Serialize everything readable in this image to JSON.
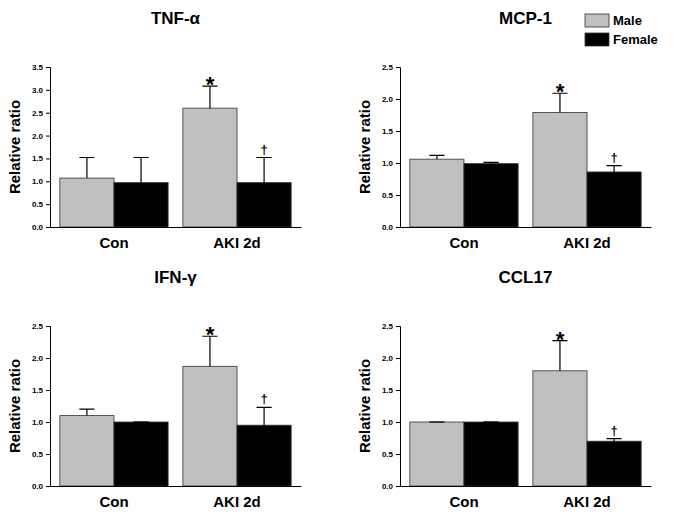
{
  "chart_data": [
    {
      "type": "bar",
      "title": "TNF-α",
      "y_label": "Relative ratio",
      "categories": [
        "Con",
        "AKI 2d"
      ],
      "ylim": [
        0,
        3.5
      ],
      "yticks": [
        {
          "value": 0,
          "label": "0.0"
        },
        0.5,
        {
          "value": 1,
          "label": "1.0"
        },
        1.5,
        {
          "value": 2,
          "label": "2.0"
        },
        2.5,
        {
          "value": 3,
          "label": "3.0"
        },
        3.5
      ],
      "series": [
        {
          "color": "#c0c0c0",
          "values": [
            1.07,
            2.6
          ],
          "errors": [
            0.45,
            0.48
          ],
          "annotations": [
            null,
            "*"
          ]
        },
        {
          "color": "#000000",
          "values": [
            0.97,
            0.97
          ],
          "errors": [
            0.55,
            0.55
          ],
          "annotations": [
            null,
            "†"
          ]
        }
      ]
    },
    {
      "type": "bar",
      "title": "MCP-1",
      "y_label": "Relative ratio",
      "categories": [
        "Con",
        "AKI 2d"
      ],
      "ylim": [
        0,
        2.5
      ],
      "yticks": [
        {
          "value": 0,
          "label": "0.0"
        },
        0.5,
        {
          "value": 1,
          "label": "1.0"
        },
        1.5,
        {
          "value": 2,
          "label": "2.0"
        },
        2.5
      ],
      "legend": "upper right",
      "series": [
        {
          "name": "Male",
          "color": "#c0c0c0",
          "values": [
            1.06,
            1.79
          ],
          "errors": [
            0.06,
            0.3
          ],
          "annotations": [
            null,
            "*"
          ]
        },
        {
          "name": "Female",
          "color": "#000000",
          "values": [
            0.99,
            0.86
          ],
          "errors": [
            0.02,
            0.1
          ],
          "annotations": [
            null,
            "†"
          ]
        }
      ]
    },
    {
      "type": "bar",
      "title": "IFN-γ",
      "y_label": "Relative ratio",
      "categories": [
        "Con",
        "AKI 2d"
      ],
      "ylim": [
        0,
        2.5
      ],
      "yticks": [
        {
          "value": 0,
          "label": "0.0"
        },
        0.5,
        {
          "value": 1,
          "label": "1.0"
        },
        1.5,
        {
          "value": 2,
          "label": "2.0"
        },
        2.5
      ],
      "series": [
        {
          "color": "#c0c0c0",
          "values": [
            1.1,
            1.87
          ],
          "errors": [
            0.1,
            0.47
          ],
          "annotations": [
            null,
            "*"
          ]
        },
        {
          "color": "#000000",
          "values": [
            1.0,
            0.95
          ],
          "errors": [
            0,
            0.28
          ],
          "annotations": [
            null,
            "†"
          ]
        }
      ]
    },
    {
      "type": "bar",
      "title": "CCL17",
      "y_label": "Relative ratio",
      "categories": [
        "Con",
        "AKI 2d"
      ],
      "ylim": [
        0,
        2.5
      ],
      "yticks": [
        {
          "value": 0,
          "label": "0.0"
        },
        0.5,
        {
          "value": 1,
          "label": "1.0"
        },
        1.5,
        {
          "value": 2,
          "label": "2.0"
        },
        2.5
      ],
      "series": [
        {
          "color": "#c0c0c0",
          "values": [
            1.0,
            1.8
          ],
          "errors": [
            0,
            0.47
          ],
          "annotations": [
            null,
            "*"
          ]
        },
        {
          "color": "#000000",
          "values": [
            1.0,
            0.7
          ],
          "errors": [
            0,
            0.04
          ],
          "annotations": [
            null,
            "†"
          ]
        }
      ]
    }
  ]
}
